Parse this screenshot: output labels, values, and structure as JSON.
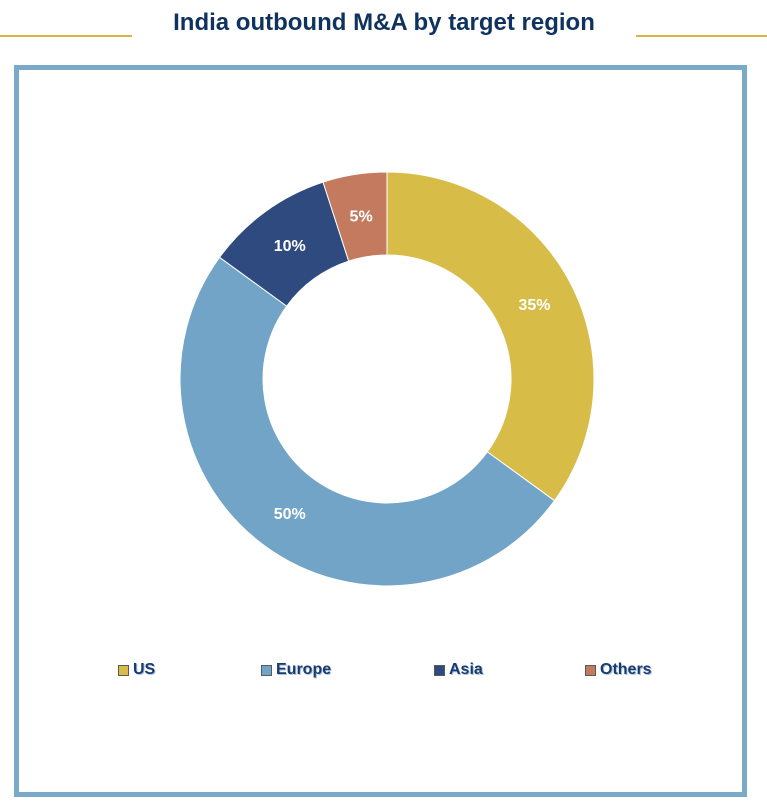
{
  "title": "India outbound M&A by target region",
  "colors": {
    "title_text": "#10325f",
    "title_rule": "#d4b545",
    "panel_border": "#7ba9c8"
  },
  "chart_data": {
    "type": "pie",
    "donut": true,
    "title": "India outbound M&A by target region",
    "slices": [
      {
        "name": "US",
        "value": 35,
        "label": "35%",
        "color": "#d8bc48"
      },
      {
        "name": "Europe",
        "value": 50,
        "label": "50%",
        "color": "#71a4c6"
      },
      {
        "name": "Asia",
        "value": 10,
        "label": "10%",
        "color": "#2f4a7f"
      },
      {
        "name": "Others",
        "value": 5,
        "label": "5%",
        "color": "#c47a5e"
      }
    ],
    "legend_position": "bottom"
  }
}
